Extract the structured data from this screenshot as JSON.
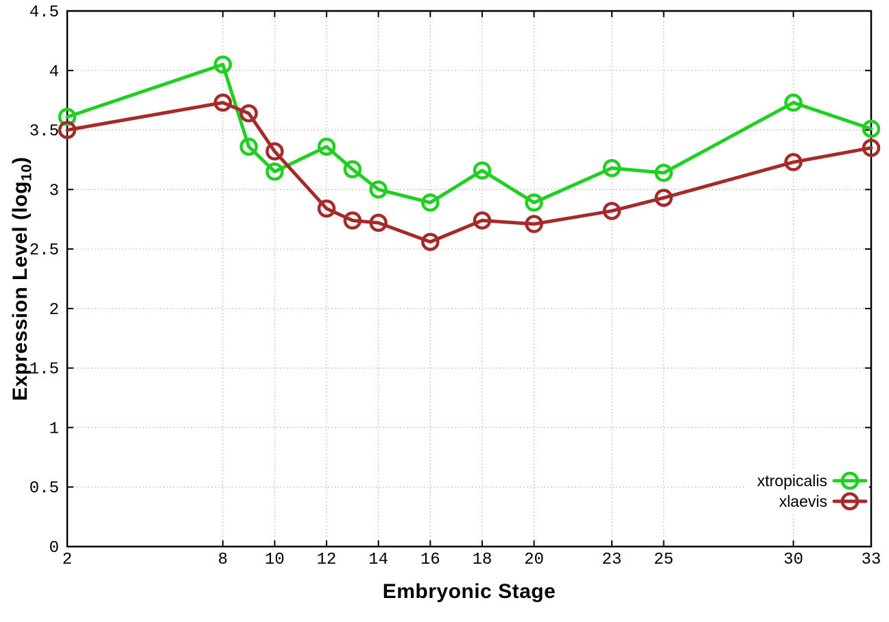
{
  "chart_data": {
    "type": "line",
    "title": "",
    "xlabel": "Embryonic Stage",
    "ylabel": "Expression Level (log10)",
    "ylabel_parts": {
      "pre": "Expression Level (log",
      "sub": "10",
      "post": ")"
    },
    "x": [
      2,
      8,
      9,
      10,
      12,
      13,
      14,
      16,
      18,
      20,
      23,
      25,
      30,
      33
    ],
    "xticks": [
      2,
      8,
      10,
      12,
      14,
      16,
      18,
      20,
      23,
      25,
      30,
      33
    ],
    "yticks": [
      0,
      0.5,
      1,
      1.5,
      2,
      2.5,
      3,
      3.5,
      4,
      4.5
    ],
    "xlim": [
      2,
      33
    ],
    "ylim": [
      0,
      4.5
    ],
    "grid": true,
    "legend_position": "bottom-right",
    "series": [
      {
        "name": "xtropicalis",
        "color": "#20d020",
        "values": [
          3.61,
          4.05,
          3.36,
          3.15,
          3.36,
          3.17,
          3.0,
          2.89,
          3.16,
          2.89,
          3.18,
          3.14,
          3.73,
          3.51
        ]
      },
      {
        "name": "xlaevis",
        "color": "#a52a2a",
        "values": [
          3.5,
          3.73,
          3.64,
          3.32,
          2.84,
          2.74,
          2.72,
          2.56,
          2.74,
          2.71,
          2.82,
          2.93,
          3.23,
          3.35
        ]
      }
    ],
    "style": {
      "grid_color": "#b4b4b4",
      "axis_color": "#000000",
      "background": "#ffffff",
      "line_width": 5,
      "marker_radius": 11,
      "marker_stroke": 4.5
    }
  }
}
